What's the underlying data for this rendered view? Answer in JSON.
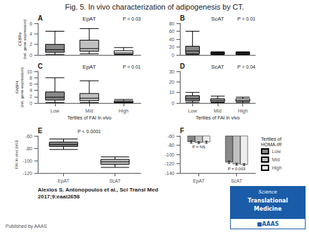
{
  "title": "Fig. 5. In vivo characterization of adipogenesis by CT.",
  "annotations": [
    "Alexios S. Antonopoulos et al., Sci Transl Med\n2017;9:eaal2658",
    "Published by AAAS",
    "Science",
    "Translational",
    "Medicine",
    "■AAAS"
  ],
  "chart_data": [
    {
      "type": "box",
      "label": "A",
      "title": "EpAT",
      "ylabel": "CEBPα\n(rel. gene expression)",
      "annotations": [
        "P = 0.03"
      ],
      "categories": [
        null,
        null,
        null
      ],
      "values": [
        {
          "whislo": 0.1,
          "q1": 0.5,
          "med": 1.0,
          "q3": 2.0,
          "whishi": 4.5
        },
        {
          "whislo": 0.2,
          "q1": 0.7,
          "med": 1.2,
          "q3": 2.8,
          "whishi": 5.0
        },
        {
          "whislo": 0.05,
          "q1": 0.15,
          "med": 0.4,
          "q3": 0.8,
          "whishi": 1.4
        }
      ],
      "colors": [
        "#888888",
        "#c0c0c0",
        "#ffffff"
      ],
      "ylim": [
        0,
        6
      ],
      "yticks": [
        0,
        2,
        4,
        6
      ],
      "grid": false,
      "tick_labels": "y"
    },
    {
      "type": "box",
      "label": "B",
      "title": "ScAT",
      "annotations": [
        "P = 0.01"
      ],
      "categories": [
        null,
        null,
        null
      ],
      "values": [
        {
          "whislo": 0.5,
          "q1": 3.0,
          "med": 10.0,
          "q3": 22.0,
          "whishi": 60.0
        },
        {
          "whislo": 1.0,
          "q1": 2.5,
          "med": 4.0,
          "q3": 6.0,
          "whishi": 8.0
        },
        {
          "whislo": 1.0,
          "q1": 2.5,
          "med": 4.0,
          "q3": 6.0,
          "whishi": 8.0
        }
      ],
      "colors": [
        "#888888",
        "#c0c0c0",
        "#ffffff"
      ],
      "ylim": [
        0,
        80
      ],
      "yticks": [
        0,
        20,
        40,
        60,
        80
      ],
      "grid": false,
      "tick_labels": "y"
    },
    {
      "type": "box",
      "label": "C",
      "title": "EpAT",
      "ylabel": "FABP4\n(rel. gene expression)",
      "xlabel": "Tertiles of FAI in vivo",
      "annotations": [
        "P = 0.01"
      ],
      "categories": [
        "Low",
        "Mid",
        "High"
      ],
      "values": [
        {
          "whislo": 0.1,
          "q1": 0.9,
          "med": 1.8,
          "q3": 3.5,
          "whishi": 8.0
        },
        {
          "whislo": 0.1,
          "q1": 0.7,
          "med": 1.5,
          "q3": 3.0,
          "whishi": 7.0
        },
        {
          "whislo": 0.05,
          "q1": 0.15,
          "med": 0.35,
          "q3": 0.65,
          "whishi": 1.1
        }
      ],
      "colors": [
        "#888888",
        "#c0c0c0",
        "#ffffff"
      ],
      "ylim": [
        0,
        10
      ],
      "yticks": [
        0,
        2,
        4,
        6,
        8,
        10
      ],
      "grid": false
    },
    {
      "type": "box",
      "label": "D",
      "title": "ScAT",
      "xlabel": "Tertiles of FAI in vivo",
      "annotations": [
        "P = 0.04"
      ],
      "categories": [
        "Low",
        "Mid",
        "High"
      ],
      "values": [
        {
          "whislo": 0.5,
          "q1": 2.0,
          "med": 4.0,
          "q3": 7.0,
          "whishi": 10.0
        },
        {
          "whislo": 0.3,
          "q1": 1.2,
          "med": 2.5,
          "q3": 4.0,
          "whishi": 6.5
        },
        {
          "whislo": 0.5,
          "q1": 1.5,
          "med": 2.5,
          "q3": 4.0,
          "whishi": 5.5
        }
      ],
      "colors": [
        "#888888",
        "#c0c0c0",
        "#ffffff"
      ],
      "ylim": [
        0,
        30
      ],
      "yticks": [
        0,
        10,
        20,
        30
      ],
      "grid": false
    },
    {
      "type": "box",
      "label": "E",
      "ylabel": "FAI in vivo (HU)",
      "annotations": [
        "P < 0.0001"
      ],
      "categories": [
        "EpAT",
        "ScAT"
      ],
      "values": [
        {
          "whislo": -82.0,
          "q1": -77.0,
          "med": -74.0,
          "q3": -70.0,
          "whishi": -65.0
        },
        {
          "whislo": -111.0,
          "q1": -106.0,
          "med": -102.0,
          "q3": -98.0,
          "whishi": -94.0
        }
      ],
      "colors": [
        "#888888",
        "#c0c0c0"
      ],
      "ylim": [
        -120,
        -60
      ],
      "yticks": [
        -120,
        -100,
        -80,
        -60
      ],
      "grid": false
    },
    {
      "type": "bar",
      "label": "F",
      "categories": [
        "EpAT",
        "ScAT"
      ],
      "series": [
        {
          "name": "Low",
          "color": "#888888",
          "values": [
            -73.0,
            -117.0
          ],
          "errors": [
            2.5,
            2.5
          ]
        },
        {
          "name": "Mid",
          "color": "#c0c0c0",
          "values": [
            -74.5,
            -121.0
          ],
          "errors": [
            2.0,
            2.0
          ]
        },
        {
          "name": "High",
          "color": "#eeeeee",
          "values": [
            -73.5,
            -122.0
          ],
          "errors": [
            2.2,
            2.2
          ]
        }
      ],
      "annotations": [
        {
          "text": "P = NS",
          "category": "EpAT"
        },
        {
          "text": "P = 0.003",
          "category": "ScAT"
        }
      ],
      "legend": "upper right",
      "legend_title": "Tertiles of\nHOMA-IR",
      "ylim": [
        -140,
        -60
      ],
      "yticks": [
        -140,
        -120,
        -100,
        -80,
        -60
      ],
      "grid": false
    }
  ]
}
